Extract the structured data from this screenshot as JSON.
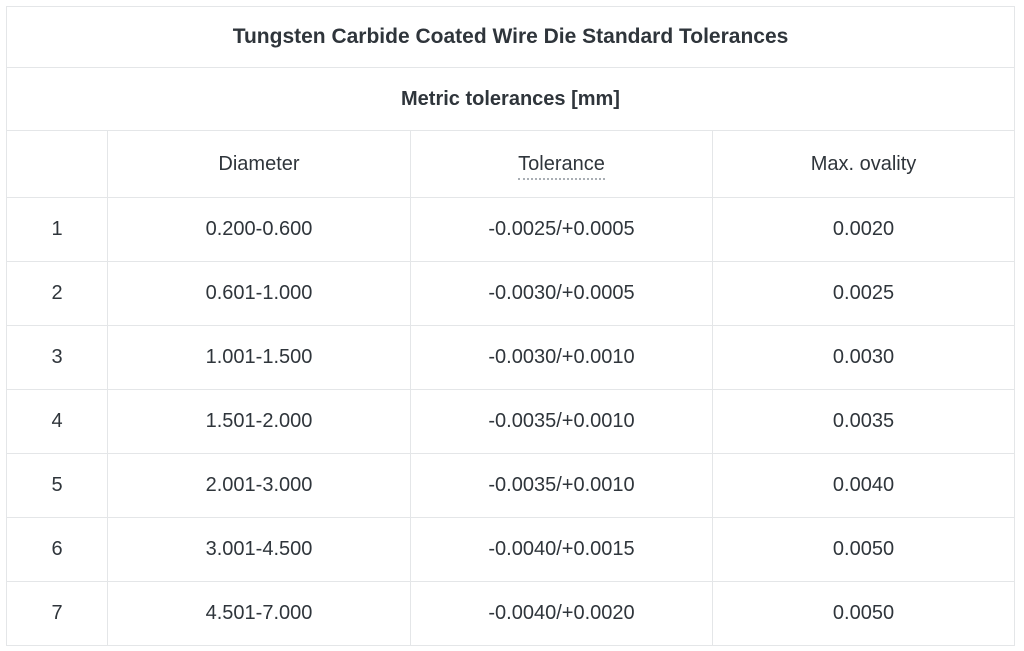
{
  "chart_data": {
    "type": "table",
    "title": "Tungsten Carbide Coated Wire Die Standard Tolerances",
    "subtitle": "Metric tolerances [mm]",
    "columns": [
      "",
      "Diameter",
      "Tolerance",
      "Max. ovality"
    ],
    "rows": [
      [
        "1",
        "0.200-0.600",
        "-0.0025/+0.0005",
        "0.0020"
      ],
      [
        "2",
        "0.601-1.000",
        "-0.0030/+0.0005",
        "0.0025"
      ],
      [
        "3",
        "1.001-1.500",
        "-0.0030/+0.0010",
        "0.0030"
      ],
      [
        "4",
        "1.501-2.000",
        "-0.0035/+0.0010",
        "0.0035"
      ],
      [
        "5",
        "2.001-3.000",
        "-0.0035/+0.0010",
        "0.0040"
      ],
      [
        "6",
        "3.001-4.500",
        "-0.0040/+0.0015",
        "0.0050"
      ],
      [
        "7",
        "4.501-7.000",
        "-0.0040/+0.0020",
        "0.0050"
      ]
    ],
    "layout": {
      "grid": true,
      "title_row_spans_all_columns": true,
      "subtitle_row_spans_all_columns": true,
      "tolerance_header_underline": "dotted"
    }
  },
  "colors": {
    "text": "#2f353b",
    "border": "#e4e6e8",
    "background": "#ffffff",
    "dotted_underline": "#a9aeb4"
  }
}
